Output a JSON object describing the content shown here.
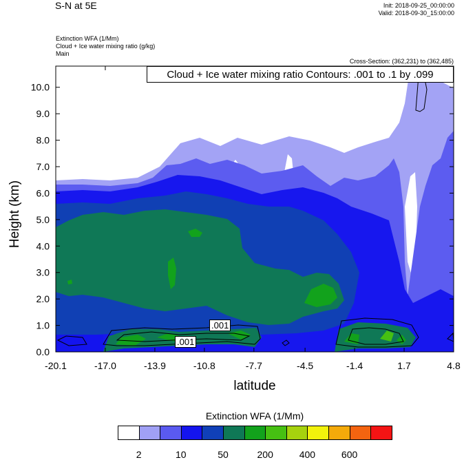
{
  "header": {
    "title": "S-N at 5E",
    "init": "Init: 2018-09-25_00:00:00",
    "valid": "Valid: 2018-09-30_15:00:00",
    "field1": "Extinction WFA   (1/Mm)",
    "field2": "Cloud + Ice water mixing ratio   (g/kg)",
    "field3": "Main",
    "cross_section": "Cross-Section: (362,231) to (362,485)"
  },
  "contour_info": "Cloud + Ice water mixing ratio Contours: .001 to .1 by .099",
  "contour_labels": [
    ".001",
    ".001"
  ],
  "chart_data": {
    "type": "heatmap",
    "xlabel": "latitude",
    "ylabel": "Height (km)",
    "x_ticks": [
      "-20.1",
      "-17.0",
      "-13.9",
      "-10.8",
      "-7.7",
      "-4.5",
      "-1.4",
      "1.7",
      "4.8"
    ],
    "y_ticks": [
      "0.0",
      "1.0",
      "2.0",
      "3.0",
      "4.0",
      "5.0",
      "6.0",
      "7.0",
      "8.0",
      "9.0",
      "10.0"
    ],
    "xlim": [
      -20.1,
      4.8
    ],
    "ylim": [
      0,
      10.8
    ],
    "colorbar": {
      "title": "Extinction WFA  (1/Mm)",
      "labels": [
        "2",
        "10",
        "50",
        "200",
        "400",
        "600"
      ],
      "colors": [
        "#ffffff",
        "#a0a0f5",
        "#5a5af0",
        "#1414ee",
        "#1040b8",
        "#0f7856",
        "#12a21c",
        "#46c012",
        "#a6d20e",
        "#f2f20c",
        "#f4aa0a",
        "#f46410",
        "#f41414"
      ]
    }
  }
}
